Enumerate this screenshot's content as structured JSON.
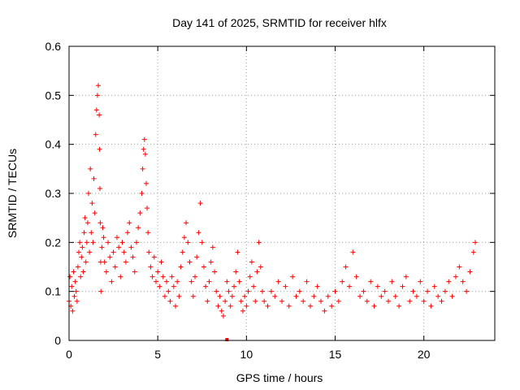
{
  "chart_data": {
    "type": "scatter",
    "title": "Day 141 of 2025, SRMTID for receiver hlfx",
    "xlabel": "GPS time / hours",
    "ylabel": "SRMTID / TECUs",
    "xlim": [
      0,
      24
    ],
    "ylim": [
      0,
      0.6
    ],
    "xticks": [
      0,
      5,
      10,
      15,
      20
    ],
    "xtick_labels": [
      "0",
      "5",
      "10",
      "15",
      "20"
    ],
    "yticks": [
      0,
      0.1,
      0.2,
      0.3,
      0.4,
      0.5,
      0.6
    ],
    "ytick_labels": [
      "0",
      "0.1",
      "0.2",
      "0.3",
      "0.4",
      "0.5",
      "0.6"
    ],
    "grid": true,
    "marker": "+",
    "color": "#ff0000",
    "series": [
      {
        "name": "SRMTID",
        "x": [
          0.0,
          0.05,
          0.1,
          0.15,
          0.2,
          0.25,
          0.3,
          0.35,
          0.4,
          0.45,
          0.5,
          0.55,
          0.6,
          0.65,
          0.7,
          0.75,
          0.8,
          0.85,
          0.9,
          0.95,
          1.0,
          1.05,
          1.1,
          1.15,
          1.2,
          1.25,
          1.3,
          1.35,
          1.4,
          1.45,
          1.5,
          1.55,
          1.6,
          1.65,
          1.7,
          1.72,
          1.74,
          1.76,
          1.78,
          1.8,
          1.85,
          1.9,
          1.95,
          2.0,
          2.1,
          2.2,
          2.3,
          2.4,
          2.5,
          2.6,
          2.7,
          2.8,
          2.9,
          3.0,
          3.1,
          3.2,
          3.3,
          3.4,
          3.5,
          3.6,
          3.7,
          3.8,
          3.9,
          4.0,
          4.1,
          4.15,
          4.2,
          4.25,
          4.3,
          4.35,
          4.4,
          4.45,
          4.5,
          4.6,
          4.7,
          4.8,
          4.9,
          5.0,
          5.1,
          5.2,
          5.3,
          5.4,
          5.5,
          5.6,
          5.7,
          5.8,
          5.9,
          6.0,
          6.1,
          6.2,
          6.3,
          6.4,
          6.5,
          6.6,
          6.7,
          6.8,
          6.9,
          7.0,
          7.1,
          7.2,
          7.3,
          7.4,
          7.5,
          7.6,
          7.7,
          7.8,
          7.9,
          8.0,
          8.1,
          8.2,
          8.3,
          8.4,
          8.5,
          8.6,
          8.7,
          8.8,
          8.9,
          9.0,
          9.1,
          9.2,
          9.3,
          9.4,
          9.5,
          9.6,
          9.7,
          9.8,
          9.9,
          10.0,
          10.1,
          10.2,
          10.3,
          10.4,
          10.5,
          10.6,
          10.7,
          10.8,
          10.9,
          11.0,
          11.2,
          11.4,
          11.6,
          11.8,
          12.0,
          12.2,
          12.4,
          12.6,
          12.8,
          13.0,
          13.2,
          13.4,
          13.6,
          13.8,
          14.0,
          14.2,
          14.4,
          14.6,
          14.8,
          15.0,
          15.2,
          15.4,
          15.6,
          15.8,
          16.0,
          16.2,
          16.4,
          16.6,
          16.8,
          17.0,
          17.2,
          17.4,
          17.6,
          17.8,
          18.0,
          18.2,
          18.4,
          18.6,
          18.8,
          19.0,
          19.2,
          19.4,
          19.6,
          19.8,
          20.0,
          20.2,
          20.4,
          20.6,
          20.8,
          21.0,
          21.2,
          21.4,
          21.6,
          21.8,
          22.0,
          22.2,
          22.4,
          22.6,
          22.8,
          22.9
        ],
        "y": [
          0.08,
          0.13,
          0.07,
          0.11,
          0.06,
          0.14,
          0.09,
          0.12,
          0.1,
          0.08,
          0.15,
          0.18,
          0.2,
          0.13,
          0.17,
          0.19,
          0.14,
          0.22,
          0.25,
          0.16,
          0.2,
          0.24,
          0.3,
          0.18,
          0.35,
          0.22,
          0.28,
          0.2,
          0.33,
          0.26,
          0.42,
          0.47,
          0.5,
          0.52,
          0.46,
          0.39,
          0.31,
          0.24,
          0.16,
          0.1,
          0.19,
          0.23,
          0.21,
          0.16,
          0.14,
          0.2,
          0.17,
          0.12,
          0.18,
          0.15,
          0.21,
          0.19,
          0.13,
          0.2,
          0.18,
          0.16,
          0.22,
          0.24,
          0.19,
          0.17,
          0.14,
          0.2,
          0.23,
          0.26,
          0.3,
          0.35,
          0.39,
          0.41,
          0.38,
          0.32,
          0.27,
          0.22,
          0.18,
          0.15,
          0.13,
          0.17,
          0.12,
          0.14,
          0.11,
          0.16,
          0.13,
          0.09,
          0.12,
          0.1,
          0.08,
          0.13,
          0.11,
          0.07,
          0.12,
          0.09,
          0.15,
          0.18,
          0.21,
          0.24,
          0.2,
          0.16,
          0.12,
          0.09,
          0.13,
          0.17,
          0.22,
          0.28,
          0.2,
          0.15,
          0.11,
          0.08,
          0.12,
          0.16,
          0.19,
          0.14,
          0.1,
          0.07,
          0.09,
          0.06,
          0.05,
          0.08,
          0.12,
          0.1,
          0.07,
          0.09,
          0.11,
          0.14,
          0.18,
          0.12,
          0.08,
          0.06,
          0.09,
          0.07,
          0.1,
          0.13,
          0.16,
          0.11,
          0.08,
          0.14,
          0.2,
          0.15,
          0.1,
          0.08,
          0.07,
          0.1,
          0.09,
          0.12,
          0.08,
          0.11,
          0.07,
          0.13,
          0.09,
          0.1,
          0.08,
          0.12,
          0.07,
          0.09,
          0.11,
          0.08,
          0.06,
          0.09,
          0.07,
          0.1,
          0.08,
          0.12,
          0.15,
          0.11,
          0.18,
          0.13,
          0.09,
          0.1,
          0.08,
          0.12,
          0.07,
          0.11,
          0.09,
          0.1,
          0.08,
          0.12,
          0.09,
          0.07,
          0.11,
          0.13,
          0.08,
          0.1,
          0.09,
          0.12,
          0.08,
          0.1,
          0.07,
          0.11,
          0.09,
          0.08,
          0.1,
          0.12,
          0.09,
          0.13,
          0.15,
          0.12,
          0.1,
          0.14,
          0.18,
          0.2
        ]
      }
    ],
    "outlier_marker": {
      "x": 8.9,
      "y": 0.0,
      "shape": "square"
    }
  }
}
